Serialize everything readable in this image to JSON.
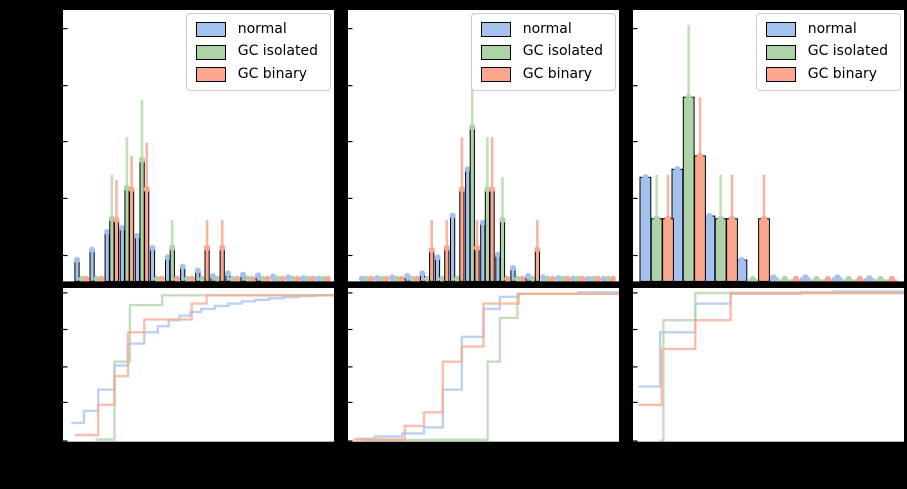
{
  "figure": {
    "background": "#000000",
    "panel_background": "#ffffff",
    "rows": 2,
    "cols": 3
  },
  "legend": {
    "items": [
      {
        "label": "normal",
        "color": "#a4c2f0"
      },
      {
        "label": "GC isolated",
        "color": "#aed3a8"
      },
      {
        "label": "GC binary",
        "color": "#fba78f"
      }
    ]
  },
  "colors": {
    "normal": {
      "fill": "#a4c2f0",
      "err": "#b9d2f5"
    },
    "gc_isolated": {
      "fill": "#aed3a8",
      "err": "#c0e0ba"
    },
    "gc_binary": {
      "fill": "#fba78f",
      "err": "#f9b5a4"
    },
    "axis": "#000000"
  },
  "layout_hints": {
    "y_ticks_top": [
      0.066,
      0.275,
      0.48,
      0.688,
      0.897
    ],
    "y_ticks_bottom": [
      0,
      0.252,
      0.484,
      0.729,
      0.968
    ],
    "tick_direction": "in",
    "tick_labels_visible": false,
    "legend_position": "upper right",
    "value_units_note": "tick labels not legible (black on black); values given as fraction of axis height/width"
  },
  "chart_data": [
    {
      "panel": "left",
      "type": "bar",
      "histogram": {
        "x0": 0.044,
        "pitch": 0.0557,
        "bar_w": 0.0172,
        "ylim": [
          0,
          1
        ],
        "values": {
          "normal": [
            0.08,
            0.118,
            0.185,
            0.2,
            0.17,
            0.125,
            0.09,
            0.055,
            0.04,
            0.02,
            0.03,
            0.025,
            0.022,
            0.018,
            0.015,
            0.012,
            0.01
          ],
          "gc_isolated": [
            0.008,
            0.008,
            0.235,
            0.35,
            0.455,
            0.008,
            0.125,
            0.008,
            0.008,
            0.008,
            0.008,
            0.008,
            0.008,
            0.008,
            0.008,
            0.008,
            0.008
          ],
          "gc_binary": [
            0.008,
            0.008,
            0.23,
            0.345,
            0.345,
            0.008,
            0.008,
            0.008,
            0.125,
            0.125,
            0.008,
            0.008,
            0.008,
            0.008,
            0.008,
            0.008,
            0.008
          ]
        },
        "err_top": {
          "gc_isolated": [
            null,
            null,
            0.4,
            0.54,
            0.68,
            null,
            0.23,
            null,
            null,
            null,
            null,
            null,
            null,
            null,
            null,
            null,
            null
          ],
          "gc_binary": [
            null,
            null,
            0.38,
            0.47,
            0.52,
            null,
            null,
            null,
            0.23,
            0.23,
            null,
            null,
            null,
            null,
            null,
            null,
            null
          ]
        }
      },
      "ecdf": {
        "normal": [
          [
            0.03,
            0.12
          ],
          [
            0.077,
            0.2
          ],
          [
            0.13,
            0.34
          ],
          [
            0.19,
            0.5
          ],
          [
            0.24,
            0.645
          ],
          [
            0.3,
            0.72
          ],
          [
            0.35,
            0.76
          ],
          [
            0.39,
            0.8
          ],
          [
            0.43,
            0.83
          ],
          [
            0.47,
            0.855
          ],
          [
            0.51,
            0.875
          ],
          [
            0.56,
            0.895
          ],
          [
            0.61,
            0.91
          ],
          [
            0.66,
            0.925
          ],
          [
            0.71,
            0.935
          ],
          [
            0.76,
            0.945
          ],
          [
            0.81,
            0.952
          ],
          [
            0.87,
            0.96
          ],
          [
            0.93,
            0.966
          ]
        ],
        "gc_isolated": [
          [
            0.12,
            0.01
          ],
          [
            0.19,
            0.525
          ],
          [
            0.247,
            0.9
          ],
          [
            0.366,
            0.965
          ]
        ],
        "gc_binary": [
          [
            0.044,
            0.04
          ],
          [
            0.13,
            0.24
          ],
          [
            0.19,
            0.43
          ],
          [
            0.24,
            0.72
          ],
          [
            0.3,
            0.805
          ],
          [
            0.475,
            0.91
          ],
          [
            0.53,
            0.965
          ]
        ]
      }
    },
    {
      "panel": "middle",
      "type": "bar",
      "histogram": {
        "x0": 0.044,
        "pitch": 0.0557,
        "bar_w": 0.0172,
        "ylim": [
          0,
          1
        ],
        "values": {
          "normal": [
            0.01,
            0.012,
            0.015,
            0.02,
            0.03,
            0.09,
            0.246,
            0.42,
            0.22,
            0.1,
            0.05,
            0.02,
            0.015,
            0.012,
            0.01,
            0.008,
            0.008
          ],
          "gc_isolated": [
            0.008,
            0.008,
            0.008,
            0.008,
            0.008,
            0.008,
            0.008,
            0.577,
            0.345,
            0.23,
            0.008,
            0.008,
            0.008,
            0.008,
            0.008,
            0.008,
            0.008
          ],
          "gc_binary": [
            0.008,
            0.008,
            0.008,
            0.008,
            0.118,
            0.125,
            0.345,
            0.125,
            0.345,
            0.008,
            0.008,
            0.12,
            0.008,
            0.008,
            0.008,
            0.008,
            0.008
          ]
        },
        "err_top": {
          "gc_isolated": [
            null,
            null,
            null,
            null,
            null,
            null,
            null,
            0.81,
            0.54,
            0.39,
            null,
            null,
            null,
            null,
            null,
            null,
            null
          ],
          "gc_binary": [
            null,
            null,
            null,
            null,
            0.23,
            0.23,
            0.54,
            0.23,
            0.54,
            null,
            null,
            0.23,
            null,
            null,
            null,
            null,
            null
          ]
        }
      },
      "ecdf": {
        "normal": [
          [
            0.03,
            0.015
          ],
          [
            0.1,
            0.03
          ],
          [
            0.2,
            0.05
          ],
          [
            0.28,
            0.09
          ],
          [
            0.35,
            0.34
          ],
          [
            0.42,
            0.69
          ],
          [
            0.5,
            0.875
          ],
          [
            0.56,
            0.955
          ],
          [
            0.63,
            0.975
          ],
          [
            0.85,
            0.985
          ]
        ],
        "gc_isolated": [
          [
            0.05,
            0.008
          ],
          [
            0.515,
            0.525
          ],
          [
            0.56,
            0.815
          ],
          [
            0.625,
            0.975
          ]
        ],
        "gc_binary": [
          [
            0.02,
            0.01
          ],
          [
            0.21,
            0.1
          ],
          [
            0.28,
            0.19
          ],
          [
            0.35,
            0.525
          ],
          [
            0.42,
            0.625
          ],
          [
            0.5,
            0.91
          ],
          [
            0.63,
            0.975
          ]
        ]
      }
    },
    {
      "panel": "right",
      "type": "bar",
      "histogram": {
        "x0": 0.026,
        "pitch": 0.118,
        "bar_w": 0.0417,
        "ylim": [
          0,
          1
        ],
        "values": {
          "normal": [
            0.39,
            0.42,
            0.245,
            0.08,
            0.015,
            0.015,
            0.015,
            0.012
          ],
          "gc_isolated": [
            0.235,
            0.69,
            0.235,
            0.008,
            0.008,
            0.008,
            0.008,
            0.008
          ],
          "gc_binary": [
            0.235,
            0.47,
            0.235,
            0.235,
            0.008,
            0.008,
            0.008,
            0.008
          ]
        },
        "err_top": {
          "gc_isolated": [
            0.4,
            0.96,
            0.4,
            null,
            null,
            null,
            null,
            null
          ],
          "gc_binary": [
            0.4,
            0.69,
            0.4,
            0.4,
            null,
            null,
            null,
            null
          ]
        }
      },
      "ecdf": {
        "normal": [
          [
            0.02,
            0.36
          ],
          [
            0.1,
            0.72
          ],
          [
            0.23,
            0.91
          ],
          [
            0.36,
            0.975
          ],
          [
            0.62,
            0.985
          ],
          [
            0.74,
            0.99
          ]
        ],
        "gc_isolated": [
          [
            0.1,
            0.005
          ],
          [
            0.112,
            0.8
          ],
          [
            0.23,
            0.98
          ]
        ],
        "gc_binary": [
          [
            0.02,
            0.24
          ],
          [
            0.106,
            0.61
          ],
          [
            0.23,
            0.8
          ],
          [
            0.36,
            0.98
          ]
        ]
      }
    }
  ]
}
